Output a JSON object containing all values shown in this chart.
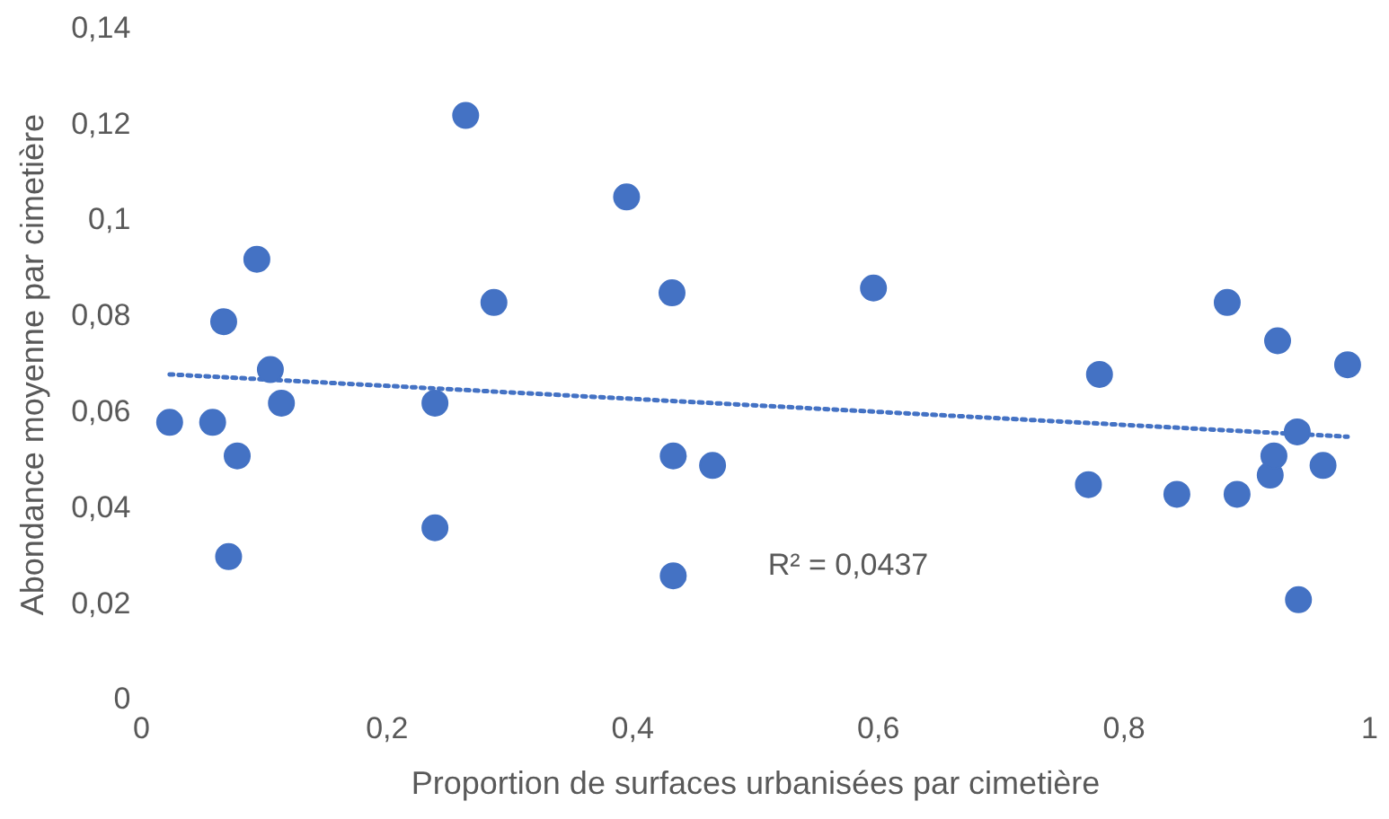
{
  "chart_data": {
    "type": "scatter",
    "xlabel": "Proportion de surfaces urbanisées par cimetière",
    "ylabel": "Abondance moyenne par cimetière",
    "annotations": [
      "R² = 0,0437"
    ],
    "marker": "circle",
    "grid": false,
    "legend": false,
    "xlim": [
      0,
      1
    ],
    "ylim": [
      0,
      0.14
    ],
    "xticks": [
      0,
      {
        "value": 0.2,
        "label": "0,2"
      },
      {
        "value": 0.4,
        "label": "0,4"
      },
      {
        "value": 0.6,
        "label": "0,6"
      },
      {
        "value": 0.8,
        "label": "0,8"
      },
      1
    ],
    "yticks": [
      0,
      {
        "value": 0.02,
        "label": "0,02"
      },
      {
        "value": 0.04,
        "label": "0,04"
      },
      {
        "value": 0.06,
        "label": "0,06"
      },
      {
        "value": 0.08,
        "label": "0,08"
      },
      {
        "value": 0.1,
        "label": "0,1"
      },
      {
        "value": 0.12,
        "label": "0,12"
      },
      {
        "value": 0.14,
        "label": "0,14"
      }
    ],
    "series": [
      {
        "color": "#4472c4",
        "x": [
          0.023,
          0.058,
          0.067,
          0.078,
          0.071,
          0.094,
          0.105,
          0.114,
          0.239,
          0.239,
          0.264,
          0.287,
          0.395,
          0.432,
          0.433,
          0.433,
          0.465,
          0.596,
          0.771,
          0.78,
          0.843,
          0.884,
          0.892,
          0.919,
          0.922,
          0.925,
          0.941,
          0.942,
          0.962,
          0.982
        ],
        "values": [
          0.058,
          0.058,
          0.079,
          0.051,
          0.03,
          0.092,
          0.069,
          0.062,
          0.062,
          0.036,
          0.122,
          0.083,
          0.105,
          0.085,
          0.051,
          0.026,
          0.049,
          0.086,
          0.045,
          0.068,
          0.043,
          0.083,
          0.043,
          0.047,
          0.051,
          0.075,
          0.056,
          0.021,
          0.049,
          0.07
        ]
      },
      {
        "type": "line",
        "color": "#4472c4",
        "line_style": "dotted",
        "marker": "none",
        "x": [
          0.023,
          0.982
        ],
        "values": [
          0.068,
          0.055
        ]
      }
    ]
  }
}
